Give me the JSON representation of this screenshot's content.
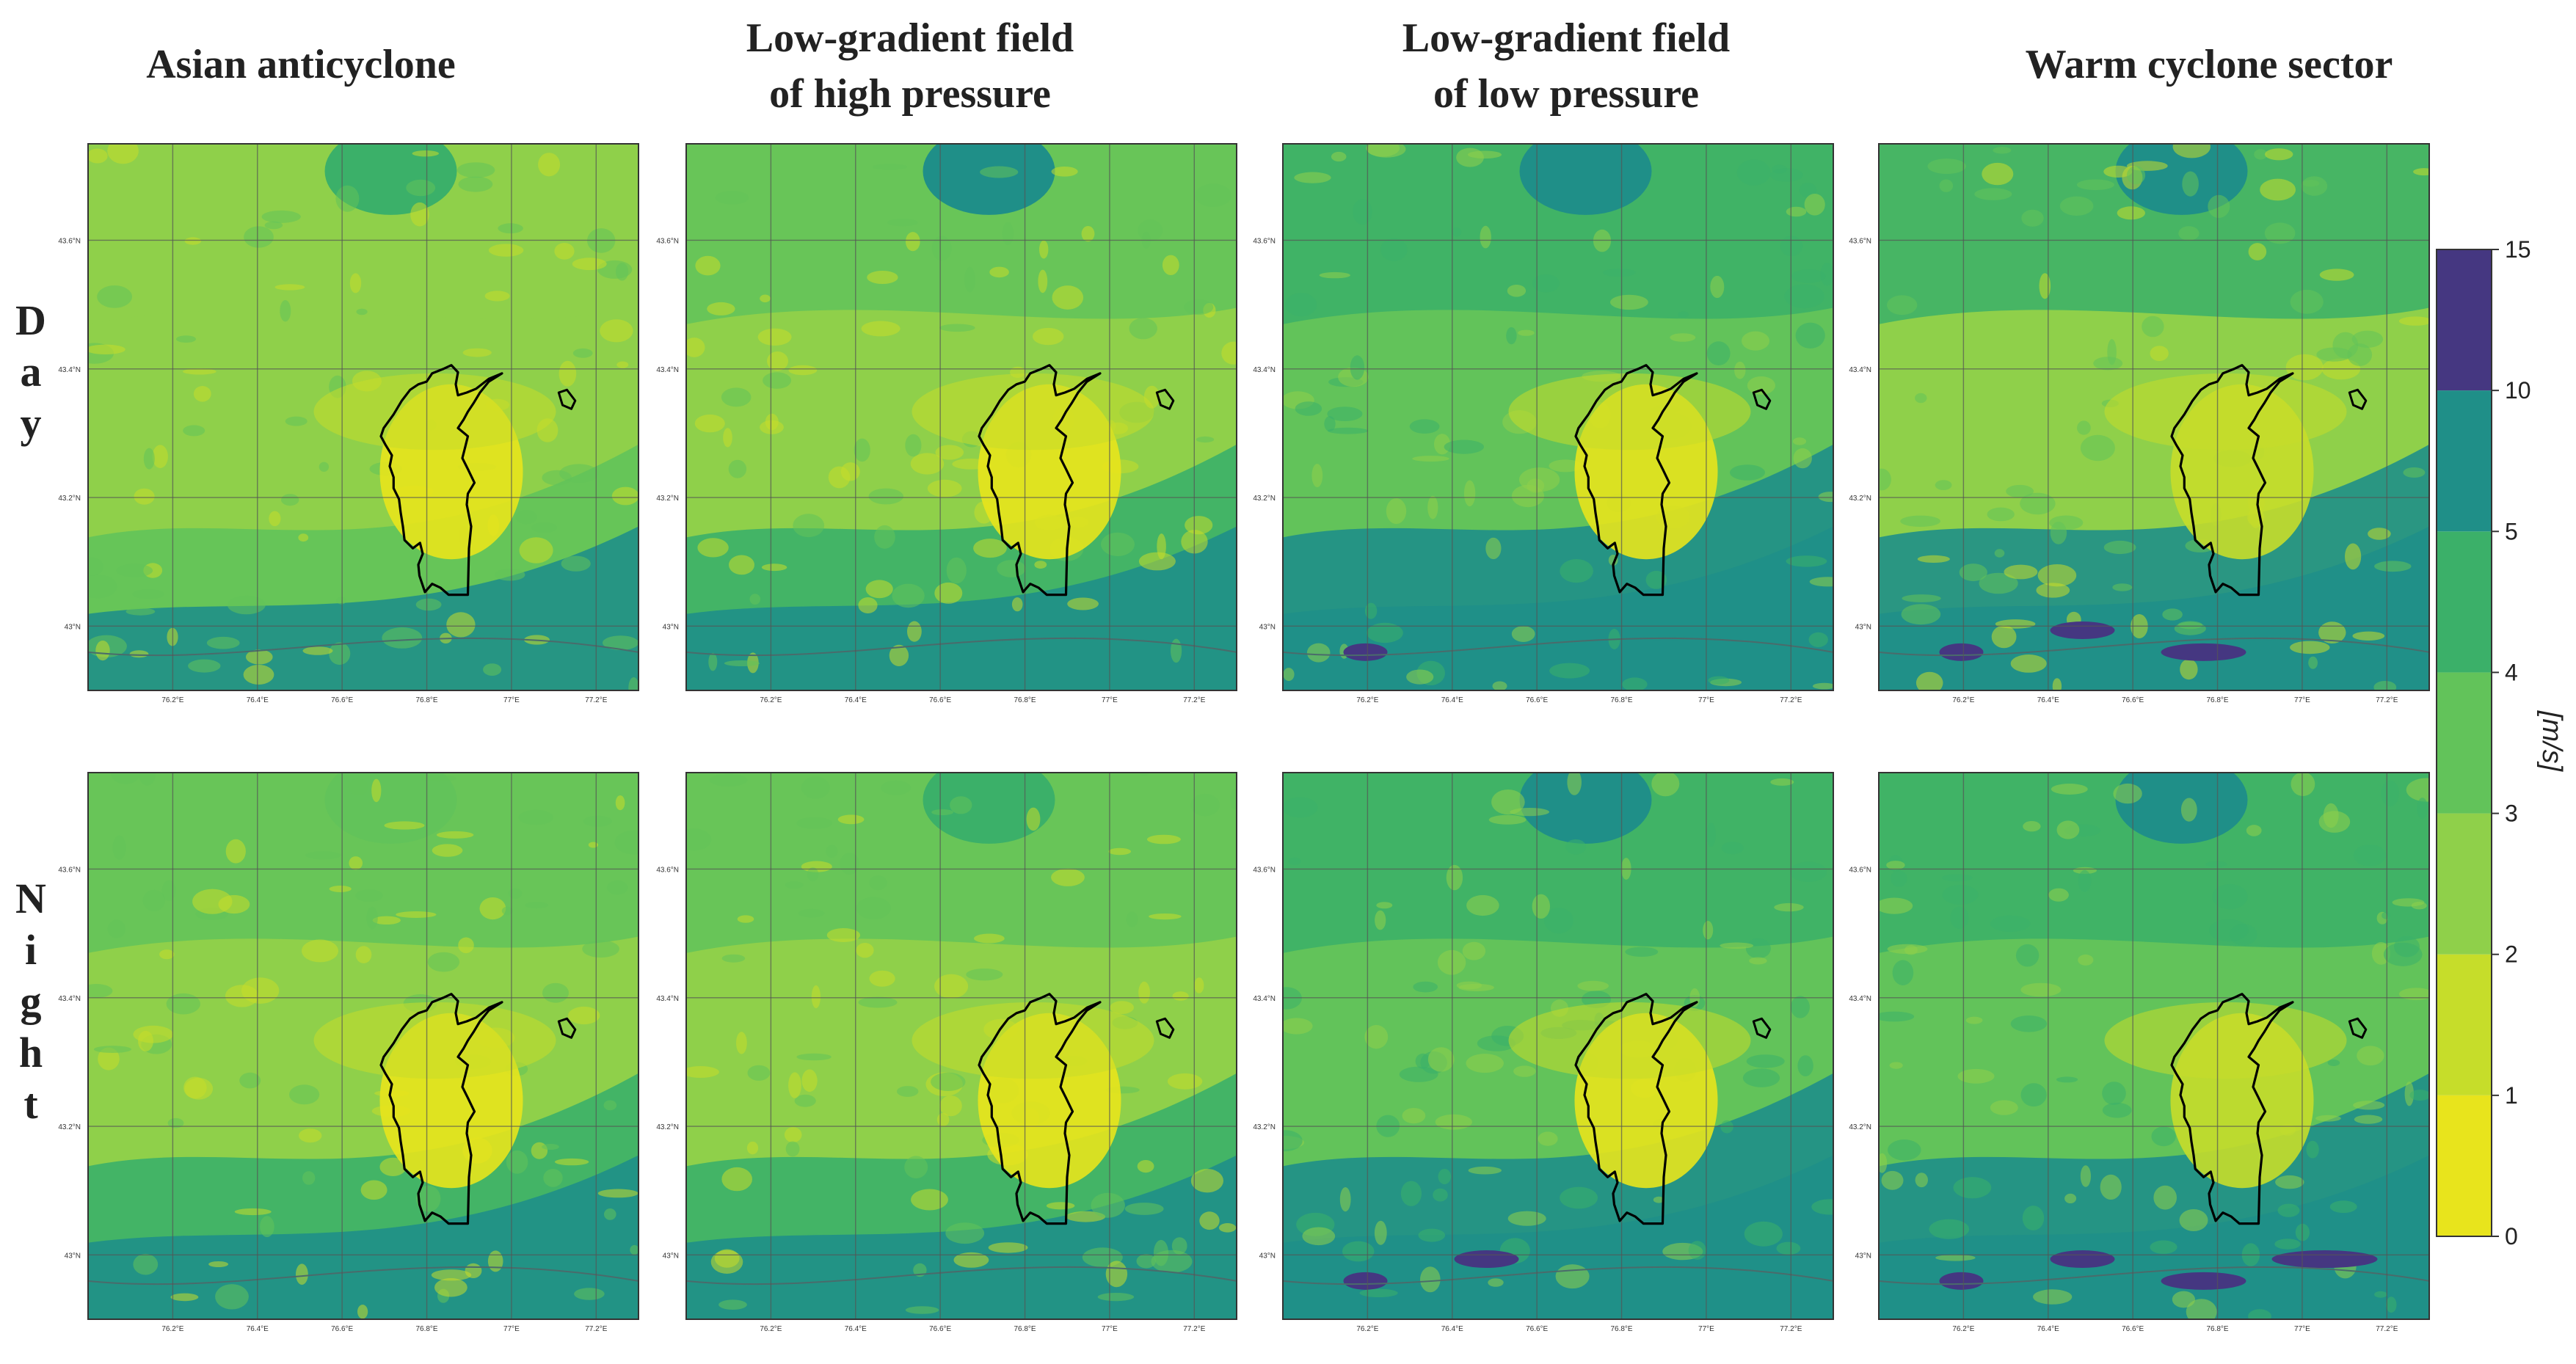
{
  "chart_data": {
    "type": "heatmap",
    "title": "",
    "columns": [
      "Asian anticyclone",
      "Low-gradient field of high pressure",
      "Low-gradient field of low pressure",
      "Warm cyclone sector"
    ],
    "column_titles": [
      [
        "Asian anticyclone"
      ],
      [
        "Low-gradient field",
        "of high pressure"
      ],
      [
        "Low-gradient field",
        "of low pressure"
      ],
      [
        "Warm cyclone sector"
      ]
    ],
    "rows": [
      "Day",
      "Night"
    ],
    "longitude_ticks": [
      "76.2°E",
      "76.4°E",
      "76.6°E",
      "76.8°E",
      "77°E",
      "77.2°E"
    ],
    "latitude_ticks": [
      "43.6°N",
      "43.4°N",
      "43.2°N",
      "43°N"
    ],
    "xlim": [
      76.0,
      77.3
    ],
    "ylim": [
      42.9,
      43.75
    ],
    "colorbar": {
      "label": "[m/s]",
      "levels": [
        0,
        1,
        2,
        3,
        4,
        5,
        10,
        15
      ],
      "colors": [
        "#e8e41c",
        "#c6dd2a",
        "#8fd04a",
        "#62c35a",
        "#3bb069",
        "#1f8f88",
        "#453781"
      ]
    },
    "panels": [
      {
        "column": "Asian anticyclone",
        "row": "Day",
        "base_class": 2,
        "north_class": 2,
        "south_class": 3,
        "hill_class": 4,
        "city_class": 0,
        "band_class": 5,
        "violet_patches": 0
      },
      {
        "column": "Low-gradient field of high pressure",
        "row": "Day",
        "base_class": 2,
        "north_class": 3,
        "south_class": 4,
        "hill_class": 5,
        "city_class": 0,
        "band_class": 5,
        "violet_patches": 0
      },
      {
        "column": "Low-gradient field of low pressure",
        "row": "Day",
        "base_class": 3,
        "north_class": 4,
        "south_class": 5,
        "hill_class": 5,
        "city_class": 0,
        "band_class": 5,
        "violet_patches": 1
      },
      {
        "column": "Warm cyclone sector",
        "row": "Day",
        "base_class": 2,
        "north_class": 4,
        "south_class": 5,
        "hill_class": 5,
        "city_class": 1,
        "band_class": 5,
        "violet_patches": 3
      },
      {
        "column": "Asian anticyclone",
        "row": "Night",
        "base_class": 2,
        "north_class": 3,
        "south_class": 4,
        "hill_class": 3,
        "city_class": 0,
        "band_class": 5,
        "violet_patches": 0
      },
      {
        "column": "Low-gradient field of high pressure",
        "row": "Night",
        "base_class": 2,
        "north_class": 3,
        "south_class": 4,
        "hill_class": 4,
        "city_class": 0,
        "band_class": 5,
        "violet_patches": 0
      },
      {
        "column": "Low-gradient field of low pressure",
        "row": "Night",
        "base_class": 3,
        "north_class": 4,
        "south_class": 5,
        "hill_class": 5,
        "city_class": 0,
        "band_class": 5,
        "violet_patches": 2
      },
      {
        "column": "Warm cyclone sector",
        "row": "Night",
        "base_class": 3,
        "north_class": 4,
        "south_class": 5,
        "hill_class": 5,
        "city_class": 1,
        "band_class": 5,
        "violet_patches": 4
      }
    ]
  },
  "labels": {
    "day_letters": [
      "D",
      "a",
      "y"
    ],
    "night_letters": [
      "N",
      "i",
      "g",
      "h",
      "t"
    ]
  }
}
